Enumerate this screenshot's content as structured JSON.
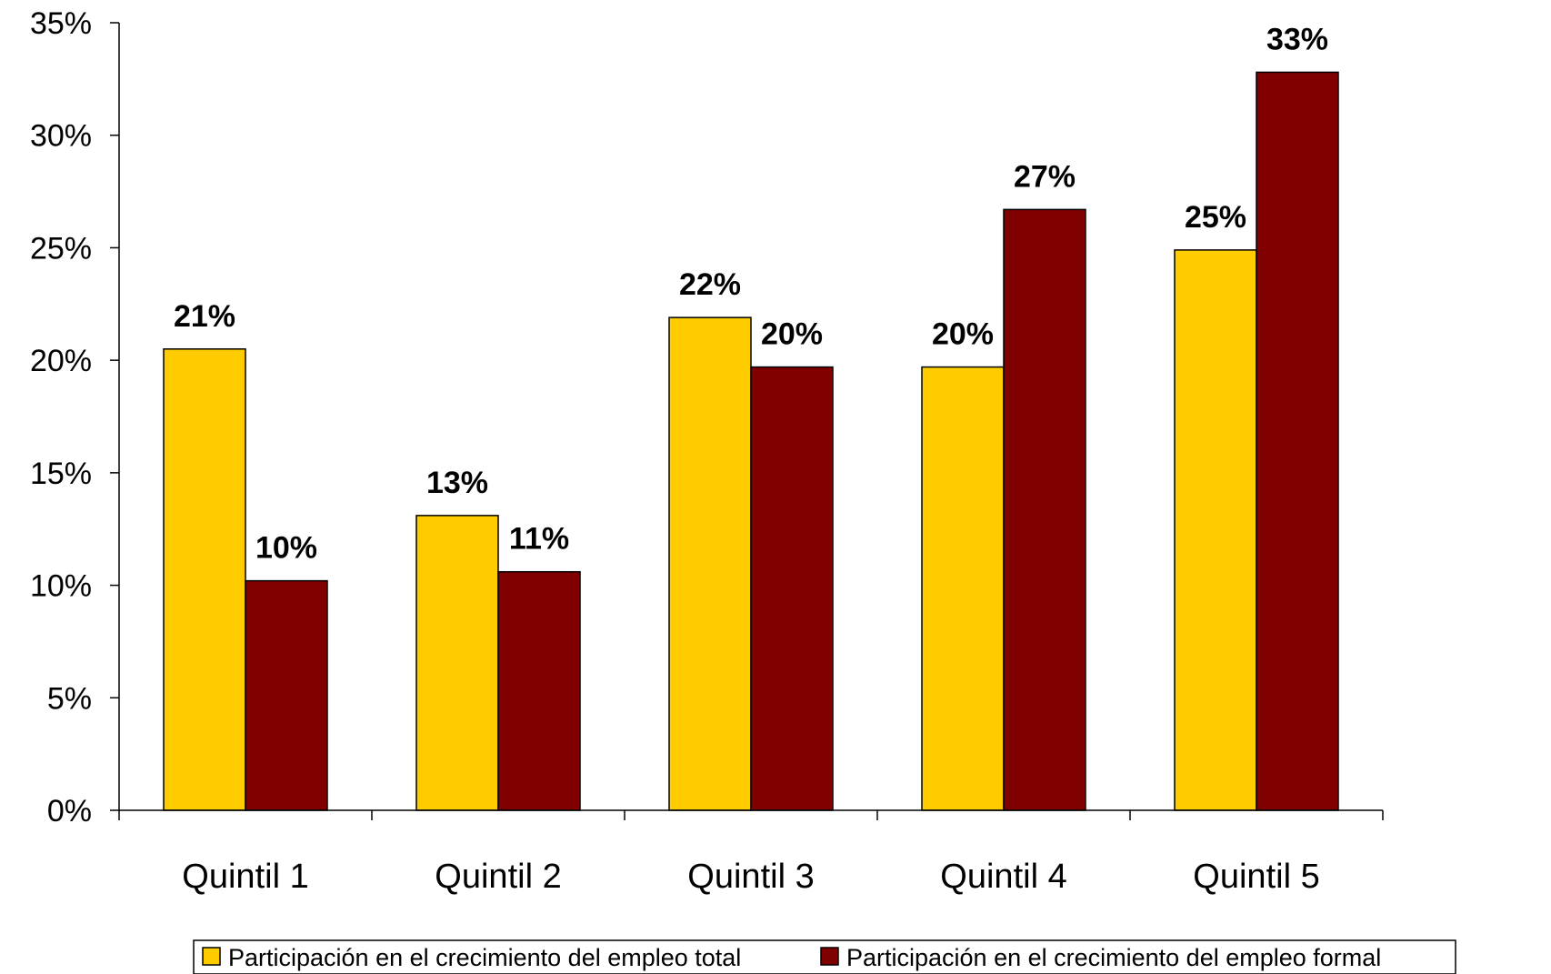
{
  "chart_data": {
    "type": "bar",
    "categories": [
      "Quintil 1",
      "Quintil 2",
      "Quintil 3",
      "Quintil 4",
      "Quintil 5"
    ],
    "series": [
      {
        "name": "Participación en el crecimiento del empleo total",
        "values": [
          20.5,
          13.1,
          21.9,
          19.7,
          24.9
        ],
        "labels": [
          "21%",
          "13%",
          "22%",
          "20%",
          "25%"
        ],
        "color": "#FFCC00"
      },
      {
        "name": "Participación en el crecimiento del empleo formal",
        "values": [
          10.2,
          10.6,
          19.7,
          26.7,
          32.8
        ],
        "labels": [
          "10%",
          "11%",
          "20%",
          "27%",
          "33%"
        ],
        "color": "#800000"
      }
    ],
    "y_ticks": [
      "0%",
      "5%",
      "10%",
      "15%",
      "20%",
      "25%",
      "30%",
      "35%"
    ],
    "ylim": [
      0,
      35
    ],
    "title": "",
    "xlabel": "",
    "ylabel": "",
    "grid": false,
    "legend_position": "bottom"
  }
}
